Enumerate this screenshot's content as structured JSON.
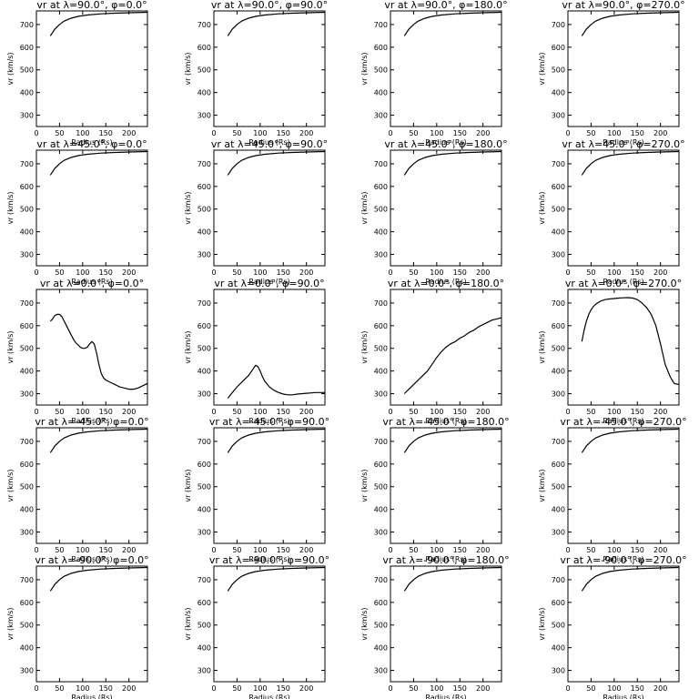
{
  "figure": {
    "background": "#ffffff",
    "line_color": "#000000"
  },
  "shared": {
    "xlabel": "Radius (Rs)",
    "ylabel": "vr (km/s)",
    "xlim": [
      0,
      240
    ],
    "ylim": [
      250,
      760
    ],
    "xticks": [
      0,
      50,
      100,
      150,
      200
    ],
    "yticks": [
      300,
      400,
      500,
      600,
      700
    ]
  },
  "chart_data": [
    {
      "type": "line",
      "title": "vr at λ=90.0°, φ=0.0°",
      "xlabel": "Radius (Rs)",
      "ylabel": "vr (km/s)",
      "xlim": [
        0,
        240
      ],
      "ylim": [
        250,
        760
      ],
      "grid": false,
      "x": [
        30,
        40,
        50,
        60,
        75,
        90,
        110,
        140,
        170,
        200,
        240
      ],
      "y": [
        650,
        680,
        700,
        715,
        728,
        736,
        742,
        747,
        750,
        752,
        754
      ]
    },
    {
      "type": "line",
      "title": "vr at λ=90.0°, φ=90.0°",
      "xlabel": "Radius (Rs)",
      "ylabel": "vr (km/s)",
      "xlim": [
        0,
        240
      ],
      "ylim": [
        250,
        760
      ],
      "grid": false,
      "x": [
        30,
        40,
        50,
        60,
        75,
        90,
        110,
        140,
        170,
        200,
        240
      ],
      "y": [
        650,
        680,
        700,
        715,
        728,
        736,
        742,
        747,
        750,
        752,
        754
      ]
    },
    {
      "type": "line",
      "title": "vr at λ=90.0°, φ=180.0°",
      "xlabel": "Radius (Rs)",
      "ylabel": "vr (km/s)",
      "xlim": [
        0,
        240
      ],
      "ylim": [
        250,
        760
      ],
      "grid": false,
      "x": [
        30,
        40,
        50,
        60,
        75,
        90,
        110,
        140,
        170,
        200,
        240
      ],
      "y": [
        650,
        680,
        700,
        715,
        728,
        736,
        742,
        747,
        750,
        752,
        754
      ]
    },
    {
      "type": "line",
      "title": "vr at λ=90.0°, φ=270.0°",
      "xlabel": "Radius (Rs)",
      "ylabel": "vr (km/s)",
      "xlim": [
        0,
        240
      ],
      "ylim": [
        250,
        760
      ],
      "grid": false,
      "x": [
        30,
        40,
        50,
        60,
        75,
        90,
        110,
        140,
        170,
        200,
        240
      ],
      "y": [
        650,
        680,
        700,
        715,
        728,
        736,
        742,
        747,
        750,
        752,
        754
      ]
    },
    {
      "type": "line",
      "title": "vr at λ=45.0°, φ=0.0°",
      "xlabel": "Radius (Rs)",
      "ylabel": "vr (km/s)",
      "xlim": [
        0,
        240
      ],
      "ylim": [
        250,
        760
      ],
      "grid": false,
      "x": [
        30,
        40,
        50,
        60,
        75,
        90,
        110,
        140,
        170,
        200,
        240
      ],
      "y": [
        650,
        680,
        700,
        715,
        728,
        736,
        742,
        747,
        750,
        752,
        754
      ]
    },
    {
      "type": "line",
      "title": "vr at λ=45.0°, φ=90.0°",
      "xlabel": "Radius (Rs)",
      "ylabel": "vr (km/s)",
      "xlim": [
        0,
        240
      ],
      "ylim": [
        250,
        760
      ],
      "grid": false,
      "x": [
        30,
        40,
        50,
        60,
        75,
        90,
        110,
        140,
        170,
        200,
        240
      ],
      "y": [
        650,
        680,
        700,
        715,
        728,
        736,
        742,
        747,
        750,
        752,
        754
      ]
    },
    {
      "type": "line",
      "title": "vr at λ=45.0°, φ=180.0°",
      "xlabel": "Radius (Rs)",
      "ylabel": "vr (km/s)",
      "xlim": [
        0,
        240
      ],
      "ylim": [
        250,
        760
      ],
      "grid": false,
      "x": [
        30,
        40,
        50,
        60,
        75,
        90,
        110,
        140,
        170,
        200,
        240
      ],
      "y": [
        650,
        680,
        700,
        715,
        728,
        736,
        742,
        747,
        750,
        752,
        754
      ]
    },
    {
      "type": "line",
      "title": "vr at λ=45.0°, φ=270.0°",
      "xlabel": "Radius (Rs)",
      "ylabel": "vr (km/s)",
      "xlim": [
        0,
        240
      ],
      "ylim": [
        250,
        760
      ],
      "grid": false,
      "x": [
        30,
        40,
        50,
        60,
        75,
        90,
        110,
        140,
        170,
        200,
        240
      ],
      "y": [
        650,
        680,
        700,
        715,
        728,
        736,
        742,
        747,
        750,
        752,
        754
      ]
    },
    {
      "type": "line",
      "title": "vr at λ=0.0°, φ=0.0°",
      "xlabel": "Radius (Rs)",
      "ylabel": "vr (km/s)",
      "xlim": [
        0,
        240
      ],
      "ylim": [
        250,
        760
      ],
      "grid": false,
      "x": [
        30,
        35,
        40,
        45,
        50,
        55,
        60,
        65,
        70,
        75,
        80,
        85,
        90,
        95,
        100,
        105,
        110,
        115,
        120,
        125,
        130,
        135,
        140,
        145,
        150,
        160,
        170,
        180,
        190,
        200,
        210,
        220,
        230,
        240
      ],
      "y": [
        620,
        630,
        645,
        650,
        650,
        640,
        620,
        600,
        580,
        560,
        540,
        525,
        515,
        505,
        500,
        500,
        505,
        520,
        530,
        520,
        480,
        430,
        390,
        370,
        360,
        350,
        340,
        330,
        325,
        320,
        320,
        325,
        335,
        345
      ]
    },
    {
      "type": "line",
      "title": "vr at λ=0.0°, φ=90.0°",
      "xlabel": "Radius (Rs)",
      "ylabel": "vr (km/s)",
      "xlim": [
        0,
        240
      ],
      "ylim": [
        250,
        760
      ],
      "grid": false,
      "x": [
        30,
        40,
        50,
        60,
        70,
        75,
        80,
        85,
        90,
        95,
        100,
        105,
        110,
        120,
        130,
        140,
        150,
        160,
        170,
        180,
        200,
        220,
        240
      ],
      "y": [
        280,
        305,
        330,
        350,
        370,
        380,
        395,
        410,
        425,
        420,
        400,
        375,
        355,
        330,
        315,
        305,
        298,
        295,
        295,
        298,
        302,
        305,
        305
      ]
    },
    {
      "type": "line",
      "title": "vr at λ=0.0°, φ=180.0°",
      "xlabel": "Radius (Rs)",
      "ylabel": "vr (km/s)",
      "xlim": [
        0,
        240
      ],
      "ylim": [
        250,
        760
      ],
      "grid": false,
      "x": [
        30,
        40,
        50,
        60,
        70,
        80,
        90,
        100,
        110,
        120,
        130,
        140,
        150,
        160,
        170,
        180,
        190,
        200,
        210,
        220,
        230,
        240
      ],
      "y": [
        300,
        320,
        340,
        360,
        380,
        400,
        430,
        460,
        485,
        505,
        520,
        530,
        545,
        555,
        570,
        580,
        595,
        605,
        615,
        625,
        630,
        635
      ]
    },
    {
      "type": "line",
      "title": "vr at λ=0.0°, φ=270.0°",
      "xlabel": "Radius (Rs)",
      "ylabel": "vr (km/s)",
      "xlim": [
        0,
        240
      ],
      "ylim": [
        250,
        760
      ],
      "grid": false,
      "x": [
        30,
        35,
        40,
        45,
        50,
        55,
        60,
        70,
        80,
        90,
        100,
        110,
        120,
        130,
        140,
        150,
        160,
        170,
        180,
        190,
        200,
        210,
        220,
        225,
        230,
        240
      ],
      "y": [
        530,
        580,
        620,
        650,
        670,
        685,
        695,
        708,
        715,
        718,
        720,
        722,
        723,
        724,
        722,
        715,
        700,
        680,
        650,
        600,
        520,
        430,
        380,
        360,
        345,
        340
      ]
    },
    {
      "type": "line",
      "title": "vr at λ=-45.0°, φ=0.0°",
      "xlabel": "Radius (Rs)",
      "ylabel": "vr (km/s)",
      "xlim": [
        0,
        240
      ],
      "ylim": [
        250,
        760
      ],
      "grid": false,
      "x": [
        30,
        40,
        50,
        60,
        75,
        90,
        110,
        140,
        170,
        200,
        240
      ],
      "y": [
        650,
        680,
        700,
        715,
        728,
        736,
        742,
        747,
        750,
        752,
        754
      ]
    },
    {
      "type": "line",
      "title": "vr at λ=-45.0°, φ=90.0°",
      "xlabel": "Radius (Rs)",
      "ylabel": "vr (km/s)",
      "xlim": [
        0,
        240
      ],
      "ylim": [
        250,
        760
      ],
      "grid": false,
      "x": [
        30,
        40,
        50,
        60,
        75,
        90,
        110,
        140,
        170,
        200,
        240
      ],
      "y": [
        650,
        680,
        700,
        715,
        728,
        736,
        742,
        747,
        750,
        752,
        754
      ]
    },
    {
      "type": "line",
      "title": "vr at λ=-45.0°, φ=180.0°",
      "xlabel": "Radius (Rs)",
      "ylabel": "vr (km/s)",
      "xlim": [
        0,
        240
      ],
      "ylim": [
        250,
        760
      ],
      "grid": false,
      "x": [
        30,
        40,
        50,
        60,
        75,
        90,
        110,
        140,
        170,
        200,
        240
      ],
      "y": [
        650,
        680,
        700,
        715,
        728,
        736,
        742,
        747,
        750,
        752,
        754
      ]
    },
    {
      "type": "line",
      "title": "vr at λ=-45.0°, φ=270.0°",
      "xlabel": "Radius (Rs)",
      "ylabel": "vr (km/s)",
      "xlim": [
        0,
        240
      ],
      "ylim": [
        250,
        760
      ],
      "grid": false,
      "x": [
        30,
        40,
        50,
        60,
        75,
        90,
        110,
        140,
        170,
        200,
        240
      ],
      "y": [
        650,
        680,
        700,
        715,
        728,
        736,
        742,
        747,
        750,
        752,
        754
      ]
    },
    {
      "type": "line",
      "title": "vr at λ=-90.0°, φ=0.0°",
      "xlabel": "Radius (Rs)",
      "ylabel": "vr (km/s)",
      "xlim": [
        0,
        240
      ],
      "ylim": [
        250,
        760
      ],
      "grid": false,
      "x": [
        30,
        40,
        50,
        60,
        75,
        90,
        110,
        140,
        170,
        200,
        240
      ],
      "y": [
        650,
        680,
        700,
        715,
        728,
        736,
        742,
        747,
        750,
        752,
        754
      ]
    },
    {
      "type": "line",
      "title": "vr at λ=-90.0°, φ=90.0°",
      "xlabel": "Radius (Rs)",
      "ylabel": "vr (km/s)",
      "xlim": [
        0,
        240
      ],
      "ylim": [
        250,
        760
      ],
      "grid": false,
      "x": [
        30,
        40,
        50,
        60,
        75,
        90,
        110,
        140,
        170,
        200,
        240
      ],
      "y": [
        650,
        680,
        700,
        715,
        728,
        736,
        742,
        747,
        750,
        752,
        754
      ]
    },
    {
      "type": "line",
      "title": "vr at λ=-90.0°, φ=180.0°",
      "xlabel": "Radius (Rs)",
      "ylabel": "vr (km/s)",
      "xlim": [
        0,
        240
      ],
      "ylim": [
        250,
        760
      ],
      "grid": false,
      "x": [
        30,
        40,
        50,
        60,
        75,
        90,
        110,
        140,
        170,
        200,
        240
      ],
      "y": [
        650,
        680,
        700,
        715,
        728,
        736,
        742,
        747,
        750,
        752,
        754
      ]
    },
    {
      "type": "line",
      "title": "vr at λ=-90.0°, φ=270.0°",
      "xlabel": "Radius (Rs)",
      "ylabel": "vr (km/s)",
      "xlim": [
        0,
        240
      ],
      "ylim": [
        250,
        760
      ],
      "grid": false,
      "x": [
        30,
        40,
        50,
        60,
        75,
        90,
        110,
        140,
        170,
        200,
        240
      ],
      "y": [
        650,
        680,
        700,
        715,
        728,
        736,
        742,
        747,
        750,
        752,
        754
      ]
    }
  ]
}
